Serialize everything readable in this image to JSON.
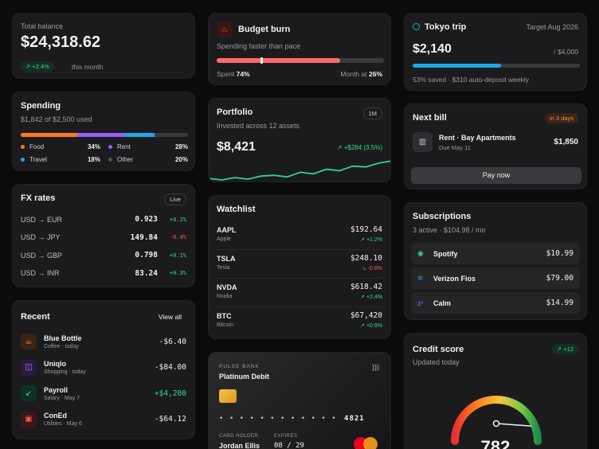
{
  "balance": {
    "label": "Total balance",
    "amount": "$24,318.62",
    "change": "↗ +2.4%",
    "period": "this month"
  },
  "spending": {
    "title": "Spending",
    "subtitle": "$1,842 of $2,500 used",
    "items": [
      {
        "name": "Food",
        "pct": "34%",
        "color": "#ff7a1a",
        "share": 34
      },
      {
        "name": "Rent",
        "pct": "28%",
        "color": "#9b5cff",
        "share": 28
      },
      {
        "name": "Travel",
        "pct": "18%",
        "color": "#1ea7e8",
        "share": 18
      },
      {
        "name": "Other",
        "pct": "20%",
        "color": "#3a3a3e",
        "share": 20
      }
    ]
  },
  "fx": {
    "title": "FX rates",
    "badge": "Live",
    "rows": [
      {
        "pair": "USD → EUR",
        "rate": "0.923",
        "change": "+0.2%",
        "dir": "pos"
      },
      {
        "pair": "USD → JPY",
        "rate": "149.84",
        "change": "-0.4%",
        "dir": "neg"
      },
      {
        "pair": "USD → GBP",
        "rate": "0.798",
        "change": "+0.1%",
        "dir": "pos"
      },
      {
        "pair": "USD → INR",
        "rate": "83.24",
        "change": "+0.3%",
        "dir": "pos"
      }
    ]
  },
  "recent": {
    "title": "Recent",
    "view_all": "View all",
    "items": [
      {
        "name": "Blue Bottle",
        "meta": "Coffee · today",
        "amount": "-$6.40",
        "dir": "neutral",
        "icon": "☕",
        "bg": "#3a2416",
        "fg": "#ff8a3d"
      },
      {
        "name": "Uniqlo",
        "meta": "Shopping · today",
        "amount": "-$84.00",
        "dir": "neutral",
        "icon": "◫",
        "bg": "#2a1a3e",
        "fg": "#a97bff"
      },
      {
        "name": "Payroll",
        "meta": "Salary · May 7",
        "amount": "+$4,200",
        "dir": "pos",
        "icon": "↙",
        "bg": "#123024",
        "fg": "#39d98a"
      },
      {
        "name": "ConEd",
        "meta": "Utilities · May 6",
        "amount": "-$64.12",
        "dir": "neutral",
        "icon": "▣",
        "bg": "#3a1616",
        "fg": "#ff5a52"
      }
    ]
  },
  "budget": {
    "title": "Budget burn",
    "subtitle": "Spending faster than pace",
    "fill": 0.74,
    "pace": 0.26,
    "spent_label": "Spent",
    "spent_value": "74%",
    "month_label": "Month at",
    "month_value": "26%"
  },
  "portfolio": {
    "title": "Portfolio",
    "subtitle": "Invested across 12 assets",
    "range": "1M",
    "value": "$8,421",
    "change": "↗ +$284 (3.5%)",
    "series": [
      30,
      28,
      31,
      29,
      33,
      34,
      32,
      38,
      36,
      42,
      40,
      46,
      45,
      50,
      53
    ]
  },
  "watchlist": {
    "title": "Watchlist",
    "items": [
      {
        "ticker": "AAPL",
        "name": "Apple",
        "price": "$192.64",
        "change": "↗ +1.2%",
        "dir": "pos"
      },
      {
        "ticker": "TSLA",
        "name": "Tesla",
        "price": "$248.10",
        "change": "↘ -0.8%",
        "dir": "neg"
      },
      {
        "ticker": "NVDA",
        "name": "Nvidia",
        "price": "$618.42",
        "change": "↗ +2.4%",
        "dir": "pos"
      },
      {
        "ticker": "BTC",
        "name": "Bitcoin",
        "price": "$67,420",
        "change": "↗ +0.6%",
        "dir": "pos"
      }
    ]
  },
  "card": {
    "bank": "PULSE BANK",
    "tier": "Platinum Debit",
    "dots": "• • • •   • • • •   • • • •",
    "last4": "4821",
    "holder_label": "CARD HOLDER",
    "holder": "Jordan Ellis",
    "expires_label": "EXPIRES",
    "expires": "08 / 29"
  },
  "trip": {
    "title": "Tokyo trip",
    "target": "Target Aug 2026",
    "saved": "$2,140",
    "goal": "/ $4,000",
    "progress": 0.53,
    "note": "53% saved · $310 auto-deposit weekly"
  },
  "bill": {
    "title": "Next bill",
    "badge": "in 3 days",
    "name": "Rent · Bay Apartments",
    "due": "Due May 11",
    "amount": "$1,850",
    "action": "Pay now"
  },
  "subs": {
    "title": "Subscriptions",
    "subtitle": "3 active · $104.98 / mo",
    "items": [
      {
        "name": "Spotify",
        "price": "$10.99",
        "icon": "◉",
        "color": "#39d98a"
      },
      {
        "name": "Verizon Fios",
        "price": "$79.00",
        "icon": "≋",
        "color": "#1ea7e8"
      },
      {
        "name": "Calm",
        "price": "$14.99",
        "icon": "zᶻ",
        "color": "#9b5cff"
      }
    ]
  },
  "credit": {
    "title": "Credit score",
    "subtitle": "Updated today",
    "change": "↗ +12",
    "score": "782",
    "min": 300,
    "max": 850
  }
}
